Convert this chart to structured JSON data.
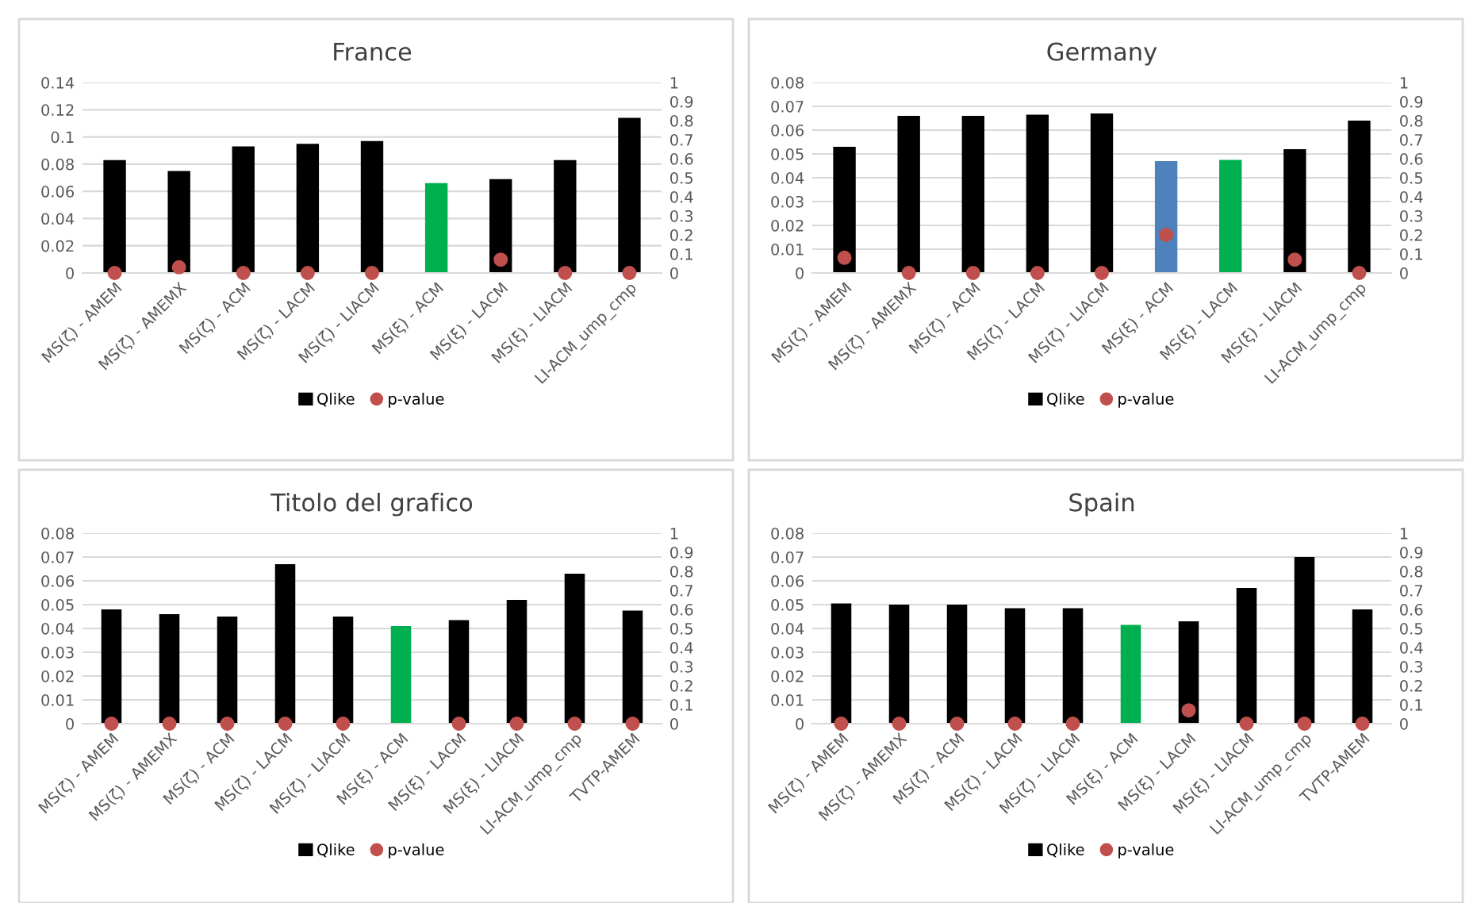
{
  "chart_data": [
    {
      "type": "bar",
      "title": "France",
      "categories": [
        "MS(ζ) - AMEM",
        "MS(ζ) - AMEMX",
        "MS(ζ) - ACM",
        "MS(ζ) - LACM",
        "MS(ζ) - LIACM",
        "MS(ξ) - ACM",
        "MS(ξ) - LACM",
        "MS(ξ) - LIACM",
        "LI-ACM_ump_cmp"
      ],
      "series": [
        {
          "name": "Qlike",
          "color": "#000000",
          "colors": [
            "#000000",
            "#000000",
            "#000000",
            "#000000",
            "#000000",
            "#00b050",
            "#000000",
            "#000000",
            "#000000"
          ],
          "values": [
            0.083,
            0.075,
            0.093,
            0.095,
            0.097,
            0.066,
            0.069,
            0.083,
            0.114
          ]
        },
        {
          "name": "p-value",
          "type": "scatter",
          "axis": "y2",
          "color": "#c0504d",
          "values": [
            0,
            0.03,
            0,
            0,
            0,
            null,
            0.07,
            0,
            0
          ]
        }
      ],
      "ylim": [
        0,
        0.14
      ],
      "yticks": [
        0,
        0.02,
        0.04,
        0.06,
        0.08,
        0.1,
        0.12,
        0.14
      ],
      "y2lim": [
        0,
        1
      ],
      "y2ticks": [
        0,
        0.1,
        0.2,
        0.3,
        0.4,
        0.5,
        0.6,
        0.7,
        0.8,
        0.9,
        1
      ],
      "grid": "y",
      "legend": "bottom",
      "marker": "circle"
    },
    {
      "type": "bar",
      "title": "Germany",
      "categories": [
        "MS(ζ) - AMEM",
        "MS(ζ) - AMEMX",
        "MS(ζ) - ACM",
        "MS(ζ) - LACM",
        "MS(ζ) - LIACM",
        "MS(ξ) - ACM",
        "MS(ξ) - LACM",
        "MS(ξ) - LIACM",
        "LI-ACM_ump_cmp"
      ],
      "series": [
        {
          "name": "Qlike",
          "color": "#000000",
          "colors": [
            "#000000",
            "#000000",
            "#000000",
            "#000000",
            "#000000",
            "#4f81bd",
            "#00b050",
            "#000000",
            "#000000"
          ],
          "values": [
            0.053,
            0.066,
            0.066,
            0.0665,
            0.067,
            0.047,
            0.0475,
            0.052,
            0.064
          ]
        },
        {
          "name": "p-value",
          "type": "scatter",
          "axis": "y2",
          "color": "#c0504d",
          "values": [
            0.08,
            0,
            0,
            0,
            0,
            0.2,
            null,
            0.07,
            0
          ]
        }
      ],
      "ylim": [
        0,
        0.08
      ],
      "yticks": [
        0,
        0.01,
        0.02,
        0.03,
        0.04,
        0.05,
        0.06,
        0.07,
        0.08
      ],
      "y2lim": [
        0,
        1
      ],
      "y2ticks": [
        0,
        0.1,
        0.2,
        0.3,
        0.4,
        0.5,
        0.6,
        0.7,
        0.8,
        0.9,
        1
      ],
      "grid": "y",
      "legend": "bottom",
      "marker": "circle"
    },
    {
      "type": "bar",
      "title": "Titolo del grafico",
      "categories": [
        "MS(ζ) - AMEM",
        "MS(ζ) - AMEMX",
        "MS(ζ) - ACM",
        "MS(ζ) - LACM",
        "MS(ζ) - LIACM",
        "MS(ξ) - ACM",
        "MS(ξ) - LACM",
        "MS(ξ) - LIACM",
        "LI-ACM_ump_cmp",
        "TVTP-AMEM"
      ],
      "series": [
        {
          "name": "Qlike",
          "color": "#000000",
          "colors": [
            "#000000",
            "#000000",
            "#000000",
            "#000000",
            "#000000",
            "#00b050",
            "#000000",
            "#000000",
            "#000000",
            "#000000"
          ],
          "values": [
            0.048,
            0.046,
            0.045,
            0.067,
            0.045,
            0.041,
            0.0435,
            0.052,
            0.063,
            0.0475
          ]
        },
        {
          "name": "p-value",
          "type": "scatter",
          "axis": "y2",
          "color": "#c0504d",
          "values": [
            0,
            0,
            0,
            0,
            0,
            null,
            0,
            0,
            0,
            0
          ]
        }
      ],
      "ylim": [
        0,
        0.08
      ],
      "yticks": [
        0,
        0.01,
        0.02,
        0.03,
        0.04,
        0.05,
        0.06,
        0.07,
        0.08
      ],
      "y2lim": [
        0,
        1
      ],
      "y2ticks": [
        0,
        0.1,
        0.2,
        0.3,
        0.4,
        0.5,
        0.6,
        0.7,
        0.8,
        0.9,
        1
      ],
      "grid": "y",
      "legend": "bottom",
      "marker": "circle"
    },
    {
      "type": "bar",
      "title": "Spain",
      "categories": [
        "MS(ζ) - AMEM",
        "MS(ζ) - AMEMX",
        "MS(ζ) - ACM",
        "MS(ζ) - LACM",
        "MS(ζ) - LIACM",
        "MS(ξ) - ACM",
        "MS(ξ) - LACM",
        "MS(ξ) - LIACM",
        "LI-ACM_ump_cmp",
        "TVTP-AMEM"
      ],
      "series": [
        {
          "name": "Qlike",
          "color": "#000000",
          "colors": [
            "#000000",
            "#000000",
            "#000000",
            "#000000",
            "#000000",
            "#00b050",
            "#000000",
            "#000000",
            "#000000",
            "#000000"
          ],
          "values": [
            0.0505,
            0.05,
            0.05,
            0.0485,
            0.0485,
            0.0415,
            0.043,
            0.057,
            0.07,
            0.048
          ]
        },
        {
          "name": "p-value",
          "type": "scatter",
          "axis": "y2",
          "color": "#c0504d",
          "values": [
            0,
            0,
            0,
            0,
            0,
            null,
            0.07,
            0,
            0,
            0
          ]
        }
      ],
      "ylim": [
        0,
        0.08
      ],
      "yticks": [
        0,
        0.01,
        0.02,
        0.03,
        0.04,
        0.05,
        0.06,
        0.07,
        0.08
      ],
      "y2lim": [
        0,
        1
      ],
      "y2ticks": [
        0,
        0.1,
        0.2,
        0.3,
        0.4,
        0.5,
        0.6,
        0.7,
        0.8,
        0.9,
        1
      ],
      "grid": "y",
      "legend": "bottom",
      "marker": "circle"
    }
  ]
}
